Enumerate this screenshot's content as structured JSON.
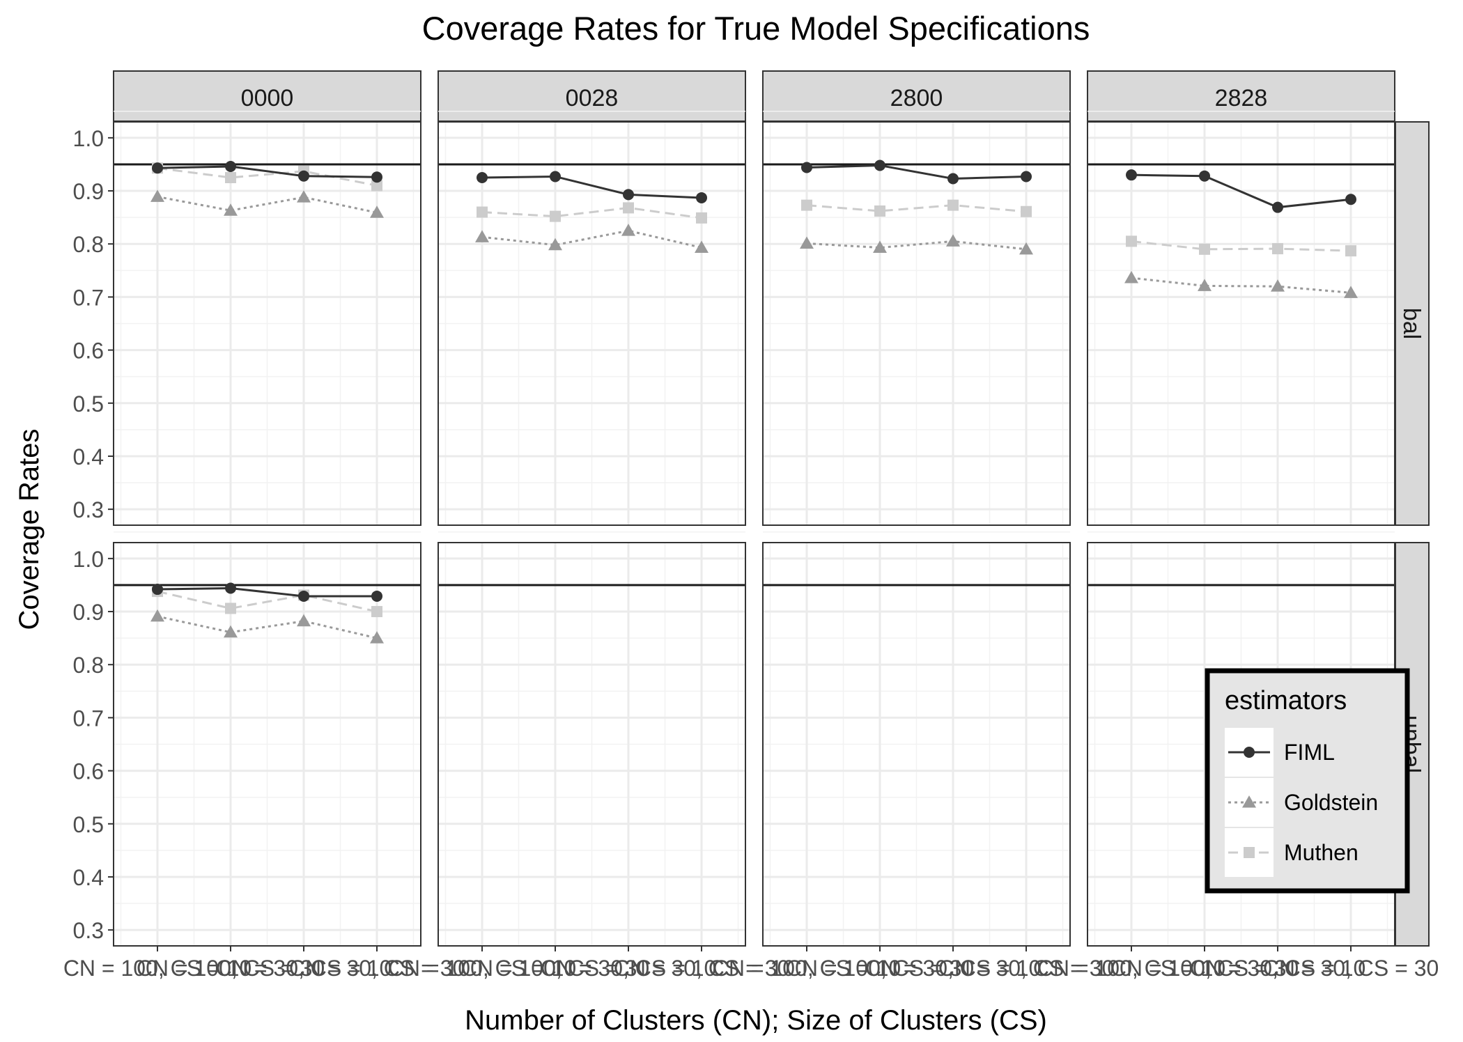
{
  "chart_data": {
    "type": "line",
    "title": "Coverage Rates for True Model Specifications",
    "xlabel": "Number of Clusters (CN); Size of Clusters (CS)",
    "ylabel": "Coverage Rates",
    "categories": [
      "CN = 100, CS = 10",
      "CN = 100, CS = 30",
      "CN = 30, CS = 10",
      "CN = 30, CS = 30"
    ],
    "yticks": [
      "0.3",
      "0.4",
      "0.5",
      "0.6",
      "0.7",
      "0.8",
      "0.9",
      "1.0"
    ],
    "ylim": [
      0.27,
      1.03
    ],
    "reference_line": 0.95,
    "column_facets": [
      "0000",
      "0028",
      "2800",
      "2828"
    ],
    "row_facets": [
      "bal",
      "unbal"
    ],
    "legend": {
      "title": "estimators",
      "entries": [
        "FIML",
        "Goldstein",
        "Muthen"
      ],
      "position": "bottom-right inside"
    },
    "series_styles": [
      {
        "name": "FIML",
        "color": "#333333",
        "marker": "circle",
        "dash": "solid"
      },
      {
        "name": "Goldstein",
        "color": "#999999",
        "marker": "triangle",
        "dash": "dotted"
      },
      {
        "name": "Muthen",
        "color": "#cccccc",
        "marker": "square",
        "dash": "dashed"
      }
    ],
    "panels": [
      {
        "row": "bal",
        "col": "0000",
        "series": [
          {
            "name": "FIML",
            "values": [
              0.943,
              0.946,
              0.928,
              0.926
            ]
          },
          {
            "name": "Goldstein",
            "values": [
              0.889,
              0.863,
              0.888,
              0.859
            ]
          },
          {
            "name": "Muthen",
            "values": [
              0.943,
              0.925,
              0.937,
              0.91
            ]
          }
        ]
      },
      {
        "row": "bal",
        "col": "0028",
        "series": [
          {
            "name": "FIML",
            "values": [
              0.925,
              0.927,
              0.893,
              0.887
            ]
          },
          {
            "name": "Goldstein",
            "values": [
              0.813,
              0.798,
              0.825,
              0.793
            ]
          },
          {
            "name": "Muthen",
            "values": [
              0.86,
              0.852,
              0.868,
              0.849
            ]
          }
        ]
      },
      {
        "row": "bal",
        "col": "2800",
        "series": [
          {
            "name": "FIML",
            "values": [
              0.944,
              0.948,
              0.923,
              0.927
            ]
          },
          {
            "name": "Goldstein",
            "values": [
              0.801,
              0.793,
              0.805,
              0.79
            ]
          },
          {
            "name": "Muthen",
            "values": [
              0.873,
              0.862,
              0.873,
              0.861
            ]
          }
        ]
      },
      {
        "row": "bal",
        "col": "2828",
        "series": [
          {
            "name": "FIML",
            "values": [
              0.93,
              0.928,
              0.869,
              0.884
            ]
          },
          {
            "name": "Goldstein",
            "values": [
              0.736,
              0.721,
              0.72,
              0.708
            ]
          },
          {
            "name": "Muthen",
            "values": [
              0.805,
              0.79,
              0.791,
              0.787
            ]
          }
        ]
      },
      {
        "row": "unbal",
        "col": "0000",
        "series": [
          {
            "name": "FIML",
            "values": [
              0.942,
              0.944,
              0.929,
              0.929
            ]
          },
          {
            "name": "Goldstein",
            "values": [
              0.891,
              0.861,
              0.882,
              0.85
            ]
          },
          {
            "name": "Muthen",
            "values": [
              0.938,
              0.906,
              0.931,
              0.9
            ]
          }
        ]
      },
      {
        "row": "unbal",
        "col": "0028",
        "series": []
      },
      {
        "row": "unbal",
        "col": "2800",
        "series": []
      },
      {
        "row": "unbal",
        "col": "2828",
        "series": []
      }
    ]
  }
}
